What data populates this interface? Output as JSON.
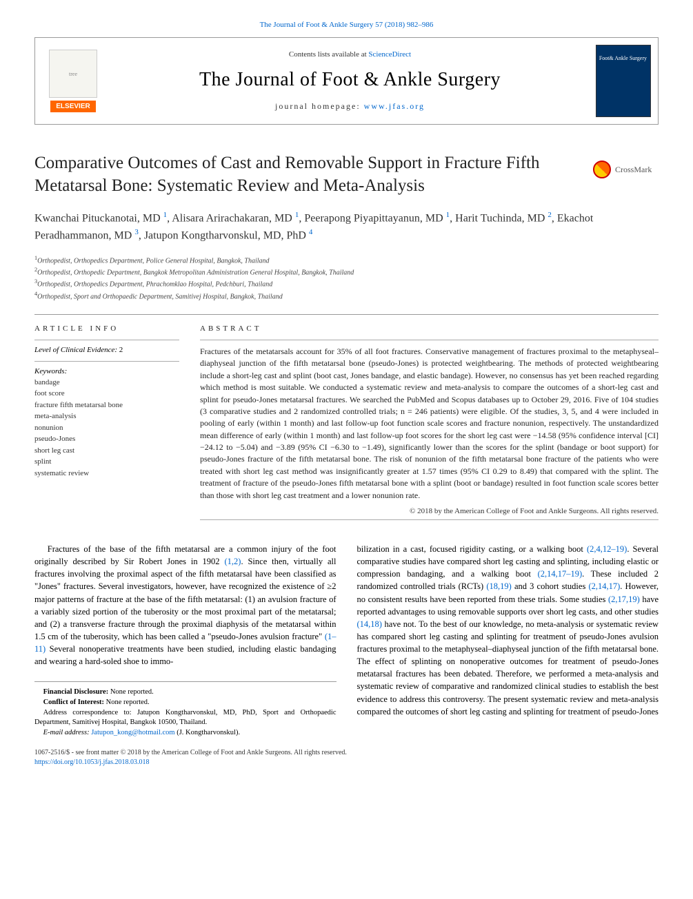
{
  "top_citation": "The Journal of Foot & Ankle Surgery 57 (2018) 982–986",
  "header": {
    "contents_prefix": "Contents lists available at ",
    "contents_link": "ScienceDirect",
    "journal_title": "The Journal of Foot & Ankle Surgery",
    "homepage_prefix": "journal homepage: ",
    "homepage_link": "www.jfas.org",
    "elsevier_label": "ELSEVIER"
  },
  "article": {
    "title": "Comparative Outcomes of Cast and Removable Support in Fracture Fifth Metatarsal Bone: Systematic Review and Meta-Analysis",
    "crossmark": "CrossMark"
  },
  "authors_html": "Kwanchai Pituckanotai, MD <sup>1</sup>, Alisara Arirachakaran, MD <sup>1</sup>, Peerapong Piyapittayanun, MD <sup>1</sup>, Harit Tuchinda, MD <sup>2</sup>, Ekachot Peradhammanon, MD <sup>3</sup>, Jatupon Kongtharvonskul, MD, PhD <sup>4</sup>",
  "affiliations": [
    "<sup>1</sup>Orthopedist, Orthopedics Department, Police General Hospital, Bangkok, Thailand",
    "<sup>2</sup>Orthopedist, Orthopedic Department, Bangkok Metropolitan Administration General Hospital, Bangkok, Thailand",
    "<sup>3</sup>Orthopedist, Orthopedics Department, Phrachomklao Hospital, Pedchburi, Thailand",
    "<sup>4</sup>Orthopedist, Sport and Orthopaedic Department, Samitivej Hospital, Bangkok, Thailand"
  ],
  "info": {
    "heading": "ARTICLE INFO",
    "loe_label": "Level of Clinical Evidence:",
    "loe_value": "2",
    "keywords_label": "Keywords:",
    "keywords": [
      "bandage",
      "foot score",
      "fracture fifth metatarsal bone",
      "meta-analysis",
      "nonunion",
      "pseudo-Jones",
      "short leg cast",
      "splint",
      "systematic review"
    ]
  },
  "abstract": {
    "heading": "ABSTRACT",
    "text": "Fractures of the metatarsals account for 35% of all foot fractures. Conservative management of fractures proximal to the metaphyseal–diaphyseal junction of the fifth metatarsal bone (pseudo-Jones) is protected weightbearing. The methods of protected weightbearing include a short-leg cast and splint (boot cast, Jones bandage, and elastic bandage). However, no consensus has yet been reached regarding which method is most suitable. We conducted a systematic review and meta-analysis to compare the outcomes of a short-leg cast and splint for pseudo-Jones metatarsal fractures. We searched the PubMed and Scopus databases up to October 29, 2016. Five of 104 studies (3 comparative studies and 2 randomized controlled trials; n = 246 patients) were eligible. Of the studies, 3, 5, and 4 were included in pooling of early (within 1 month) and last follow-up foot function scale scores and fracture nonunion, respectively. The unstandardized mean difference of early (within 1 month) and last follow-up foot scores for the short leg cast were −14.58 (95% confidence interval [CI] −24.12 to −5.04) and −3.89 (95% CI −6.30 to −1.49), significantly lower than the scores for the splint (bandage or boot support) for pseudo-Jones fracture of the fifth metatarsal bone. The risk of nonunion of the fifth metatarsal bone fracture of the patients who were treated with short leg cast method was insignificantly greater at 1.57 times (95% CI 0.29 to 8.49) that compared with the splint. The treatment of fracture of the pseudo-Jones fifth metatarsal bone with a splint (boot or bandage) resulted in foot function scale scores better than those with short leg cast treatment and a lower nonunion rate.",
    "copyright": "© 2018 by the American College of Foot and Ankle Surgeons. All rights reserved."
  },
  "body": {
    "left": "Fractures of the base of the fifth metatarsal are a common injury of the foot originally described by Sir Robert Jones in 1902 <a>(1,2)</a>. Since then, virtually all fractures involving the proximal aspect of the fifth metatarsal have been classified as \"Jones\" fractures. Several investigators, however, have recognized the existence of ≥2 major patterns of fracture at the base of the fifth metatarsal: (1) an avulsion fracture of a variably sized portion of the tuberosity or the most proximal part of the metatarsal; and (2) a transverse fracture through the proximal diaphysis of the metatarsal within 1.5 cm of the tuberosity, which has been called a \"pseudo-Jones avulsion fracture\" <a>(1–11)</a> Several nonoperative treatments have been studied, including elastic bandaging and wearing a hard-soled shoe to immo-",
    "right": "bilization in a cast, focused rigidity casting, or a walking boot <a>(2,4,12–19)</a>. Several comparative studies have compared short leg casting and splinting, including elastic or compression bandaging, and a walking boot <a>(2,14,17–19)</a>. These included 2 randomized controlled trials (RCTs) <a>(18,19)</a> and 3 cohort studies <a>(2,14,17)</a>. However, no consistent results have been reported from these trials. Some studies <a>(2,17,19)</a> have reported advantages to using removable supports over short leg casts, and other studies <a>(14,18)</a> have not. To the best of our knowledge, no meta-analysis or systematic review has compared short leg casting and splinting for treatment of pseudo-Jones avulsion fractures proximal to the metaphyseal–diaphyseal junction of the fifth metatarsal bone. The effect of splinting on nonoperative outcomes for treatment of pseudo-Jones metatarsal fractures has been debated. Therefore, we performed a meta-analysis and systematic review of comparative and randomized clinical studies to establish the best evidence to address this controversy. The present systematic review and meta-analysis compared the outcomes of short leg casting and splinting for treatment of pseudo-Jones"
  },
  "footnotes": {
    "financial_label": "Financial Disclosure:",
    "financial_value": "None reported.",
    "conflict_label": "Conflict of Interest:",
    "conflict_value": "None reported.",
    "correspondence": "Address correspondence to: Jatupon Kongtharvonskul, MD, PhD, Sport and Orthopaedic Department, Samitivej Hospital, Bangkok 10500, Thailand.",
    "email_label": "E-mail address:",
    "email_value": "Jatupon_kong@hotmail.com",
    "email_suffix": "(J. Kongtharvonskul)."
  },
  "bottom": {
    "issn_line": "1067-2516/$ - see front matter © 2018 by the American College of Foot and Ankle Surgeons. All rights reserved.",
    "doi": "https://doi.org/10.1053/j.jfas.2018.03.018"
  },
  "colors": {
    "link": "#0066cc",
    "elsevier_orange": "#ff6600",
    "text": "#000000",
    "divider": "#999999"
  }
}
